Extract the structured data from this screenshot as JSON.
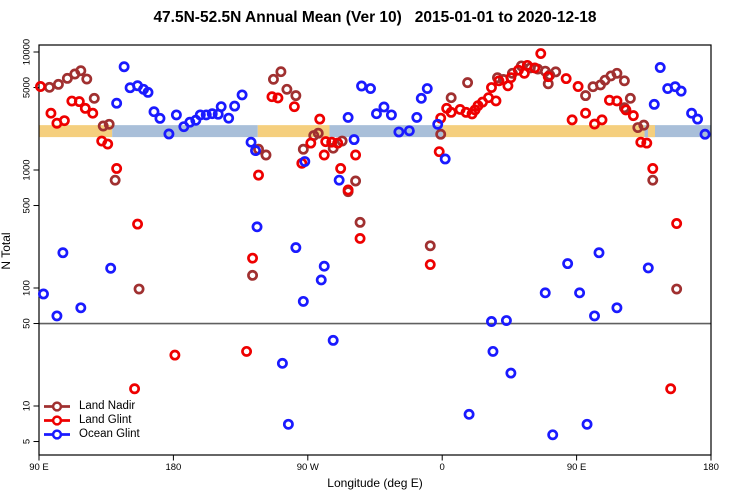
{
  "chart_data": {
    "type": "scatter",
    "title": "47.5N-52.5N Annual Mean (Ver 10)   2015-01-01 to 2020-12-18",
    "xlabel": "Longitude (deg E)",
    "ylabel": "N Total",
    "x_axis": {
      "description": "Longitude wrapping eastward from 90E around the globe to 180",
      "range_deg_along_axis": [
        90,
        540
      ],
      "ticks": [
        {
          "t": 90,
          "label": "90 E"
        },
        {
          "t": 180,
          "label": "180"
        },
        {
          "t": 270,
          "label": "90 W"
        },
        {
          "t": 360,
          "label": "0"
        },
        {
          "t": 450,
          "label": "90 E"
        },
        {
          "t": 540,
          "label": "180"
        }
      ]
    },
    "y_axis": {
      "scale": "log10",
      "range": [
        4,
        11500
      ],
      "ticks": [
        "10000",
        "5000",
        "1000",
        "500",
        "100",
        "50",
        "10",
        "5"
      ],
      "tick_values": [
        10000,
        5000,
        1000,
        500,
        100,
        50,
        10,
        5
      ]
    },
    "reference_line": {
      "value": 50,
      "color": "#606060"
    },
    "surface_band": {
      "n_top": 2400,
      "n_bottom": 1900,
      "land_color": "#F5CF7E",
      "ocean_color": "#A9BFD9",
      "segments": [
        {
          "surface": "land",
          "from": 90,
          "to": 139
        },
        {
          "surface": "ocean",
          "from": 139,
          "to": 236.5
        },
        {
          "surface": "land",
          "from": 236.5,
          "to": 284.5
        },
        {
          "surface": "ocean",
          "from": 284.5,
          "to": 360.5
        },
        {
          "surface": "land",
          "from": 360.5,
          "to": 495.5
        },
        {
          "surface": "ocean",
          "from": 495.5,
          "to": 540
        },
        {
          "surface": "land",
          "from": 497.8,
          "to": 502.5
        }
      ]
    },
    "legend": {
      "position": "bottom-left"
    },
    "series": [
      {
        "name": "Land Nadir",
        "color": "#A03030",
        "marker": "open-circle",
        "points": [
          [
            97,
            5020
          ],
          [
            103,
            5320
          ],
          [
            109,
            5980
          ],
          [
            114,
            6510
          ],
          [
            118,
            6940
          ],
          [
            122,
            5900
          ],
          [
            127,
            4050
          ],
          [
            133,
            2360
          ],
          [
            137,
            2440
          ],
          [
            141,
            820
          ],
          [
            157,
            98
          ],
          [
            233,
            128
          ],
          [
            237,
            1500
          ],
          [
            242,
            1340
          ],
          [
            247,
            5870
          ],
          [
            252,
            6810
          ],
          [
            256,
            4830
          ],
          [
            262,
            4270
          ],
          [
            267,
            1500
          ],
          [
            274,
            1960
          ],
          [
            277,
            2050
          ],
          [
            287,
            1530
          ],
          [
            293,
            1760
          ],
          [
            297,
            655
          ],
          [
            302,
            807
          ],
          [
            305,
            360
          ],
          [
            352,
            228
          ],
          [
            359,
            2010
          ],
          [
            366,
            4100
          ],
          [
            377,
            5500
          ],
          [
            397,
            6060
          ],
          [
            401,
            5850
          ],
          [
            407,
            6600
          ],
          [
            413,
            7620
          ],
          [
            419,
            7330
          ],
          [
            424,
            7170
          ],
          [
            429,
            6880
          ],
          [
            431,
            5380
          ],
          [
            432,
            6370
          ],
          [
            436,
            6790
          ],
          [
            456,
            4270
          ],
          [
            461,
            5080
          ],
          [
            466,
            5260
          ],
          [
            469,
            5770
          ],
          [
            473,
            6270
          ],
          [
            477,
            6600
          ],
          [
            482,
            3370
          ],
          [
            482,
            5700
          ],
          [
            486,
            4050
          ],
          [
            491,
            2290
          ],
          [
            495,
            2400
          ],
          [
            501,
            820
          ],
          [
            517,
            98
          ]
        ]
      },
      {
        "name": "Land Glint",
        "color": "#EE0000",
        "marker": "open-circle",
        "points": [
          [
            91,
            5100
          ],
          [
            98,
            3030
          ],
          [
            102,
            2490
          ],
          [
            107,
            2620
          ],
          [
            112,
            3840
          ],
          [
            117,
            3800
          ],
          [
            121,
            3330
          ],
          [
            126,
            3030
          ],
          [
            132,
            1760
          ],
          [
            136,
            1660
          ],
          [
            142,
            1030
          ],
          [
            154,
            14
          ],
          [
            156,
            348
          ],
          [
            181,
            27
          ],
          [
            229,
            29
          ],
          [
            233,
            179
          ],
          [
            237,
            905
          ],
          [
            246,
            4180
          ],
          [
            250,
            4080
          ],
          [
            261,
            3440
          ],
          [
            266,
            1140
          ],
          [
            272,
            1690
          ],
          [
            278,
            2700
          ],
          [
            281,
            1340
          ],
          [
            282,
            1740
          ],
          [
            286,
            1720
          ],
          [
            290,
            1690
          ],
          [
            292,
            1030
          ],
          [
            297,
            677
          ],
          [
            302,
            1340
          ],
          [
            305,
            263
          ],
          [
            352,
            158
          ],
          [
            358,
            1430
          ],
          [
            359,
            2750
          ],
          [
            363,
            3330
          ],
          [
            366,
            3080
          ],
          [
            372,
            3260
          ],
          [
            376,
            3080
          ],
          [
            380,
            2990
          ],
          [
            382,
            3230
          ],
          [
            384,
            3510
          ],
          [
            387,
            3760
          ],
          [
            391,
            4100
          ],
          [
            393,
            5000
          ],
          [
            396,
            3850
          ],
          [
            398,
            5700
          ],
          [
            404,
            5170
          ],
          [
            406,
            6060
          ],
          [
            411,
            7010
          ],
          [
            415,
            6600
          ],
          [
            417,
            7700
          ],
          [
            422,
            7330
          ],
          [
            426,
            9700
          ],
          [
            431,
            6180
          ],
          [
            443,
            5950
          ],
          [
            447,
            2660
          ],
          [
            451,
            5100
          ],
          [
            456,
            3030
          ],
          [
            462,
            2450
          ],
          [
            467,
            2660
          ],
          [
            472,
            3900
          ],
          [
            477,
            3850
          ],
          [
            483,
            3230
          ],
          [
            488,
            2890
          ],
          [
            493,
            1720
          ],
          [
            497,
            1690
          ],
          [
            501,
            1030
          ],
          [
            513,
            14
          ],
          [
            517,
            352
          ]
        ]
      },
      {
        "name": "Ocean Glint",
        "color": "#1A1AFF",
        "marker": "open-circle",
        "points": [
          [
            93,
            89
          ],
          [
            102,
            58
          ],
          [
            106,
            199
          ],
          [
            118,
            68
          ],
          [
            138,
            147
          ],
          [
            142,
            3680
          ],
          [
            147,
            7500
          ],
          [
            151,
            4980
          ],
          [
            156,
            5180
          ],
          [
            160,
            4830
          ],
          [
            163,
            4550
          ],
          [
            167,
            3120
          ],
          [
            171,
            2740
          ],
          [
            177,
            2020
          ],
          [
            182,
            2930
          ],
          [
            187,
            2330
          ],
          [
            191,
            2540
          ],
          [
            195,
            2640
          ],
          [
            198,
            2930
          ],
          [
            202,
            2930
          ],
          [
            206,
            3000
          ],
          [
            210,
            2970
          ],
          [
            212,
            3440
          ],
          [
            217,
            2750
          ],
          [
            221,
            3480
          ],
          [
            226,
            4330
          ],
          [
            232,
            1720
          ],
          [
            235,
            1460
          ],
          [
            236,
            330
          ],
          [
            253,
            23
          ],
          [
            257,
            7
          ],
          [
            262,
            220
          ],
          [
            267,
            77
          ],
          [
            268,
            1180
          ],
          [
            279,
            117
          ],
          [
            281,
            153
          ],
          [
            287,
            36
          ],
          [
            291,
            820
          ],
          [
            297,
            2790
          ],
          [
            301,
            1810
          ],
          [
            306,
            5150
          ],
          [
            312,
            4900
          ],
          [
            316,
            3000
          ],
          [
            321,
            3420
          ],
          [
            326,
            2930
          ],
          [
            331,
            2100
          ],
          [
            338,
            2150
          ],
          [
            343,
            2790
          ],
          [
            346,
            4050
          ],
          [
            350,
            4900
          ],
          [
            357,
            2440
          ],
          [
            362,
            1240
          ],
          [
            378,
            8.5
          ],
          [
            393,
            52
          ],
          [
            394,
            29
          ],
          [
            403,
            53
          ],
          [
            406,
            19
          ],
          [
            429,
            91
          ],
          [
            434,
            5.7
          ],
          [
            444,
            161
          ],
          [
            452,
            91
          ],
          [
            457,
            7
          ],
          [
            462,
            58
          ],
          [
            465,
            199
          ],
          [
            477,
            68
          ],
          [
            498,
            148
          ],
          [
            502,
            3600
          ],
          [
            506,
            7390
          ],
          [
            511,
            4900
          ],
          [
            516,
            5080
          ],
          [
            520,
            4660
          ],
          [
            527,
            3030
          ],
          [
            531,
            2700
          ],
          [
            536,
            2010
          ]
        ]
      }
    ]
  }
}
